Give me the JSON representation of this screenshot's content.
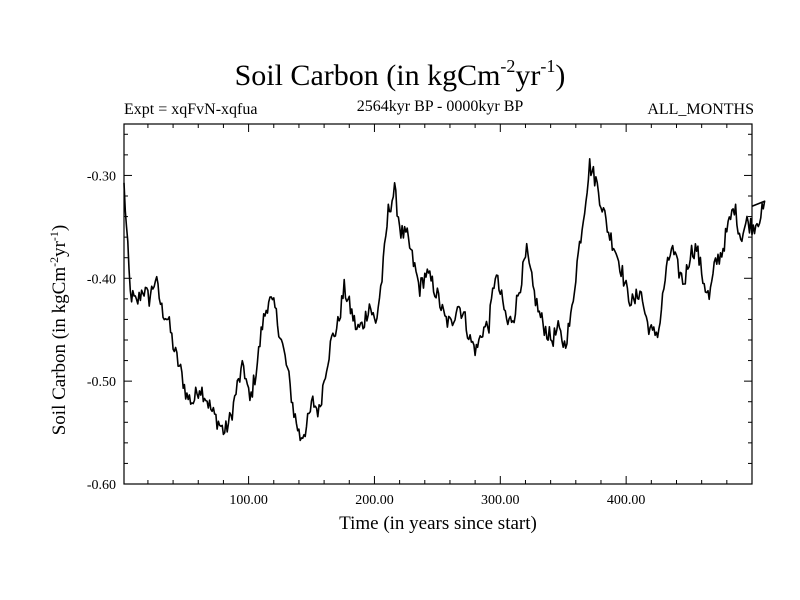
{
  "chart_data": {
    "type": "line",
    "title_main": "Soil Carbon (in kgCm",
    "title_sup1": "-2",
    "title_mid": "yr",
    "title_sup2": "-1",
    "title_end": ")",
    "expt": "Expt = xqFvN-xqfua",
    "period": "2564kyr BP - 0000kyr BP",
    "months": "ALL_MONTHS",
    "xlabel": "Time (in years since start)",
    "ylabel_main": "Soil Carbon (in kgCm",
    "ylabel_sup1": "-2",
    "ylabel_mid": "yr",
    "ylabel_sup2": "-1",
    "ylabel_end": ")",
    "xlim": [
      1,
      500
    ],
    "ylim": [
      -0.6,
      -0.25
    ],
    "x_ticks": [
      100,
      200,
      300,
      400
    ],
    "x_tick_labels": [
      "100.00",
      "200.00",
      "300.00",
      "400.00"
    ],
    "y_ticks": [
      -0.6,
      -0.5,
      -0.4,
      -0.3
    ],
    "y_tick_labels": [
      "-0.60",
      "-0.50",
      "-0.40",
      "-0.30"
    ],
    "series": [
      {
        "name": "Soil Carbon",
        "color": "#000000",
        "x_start": 1,
        "x_step": 5,
        "values": [
          -0.31,
          -0.415,
          -0.425,
          -0.41,
          -0.42,
          -0.4,
          -0.43,
          -0.44,
          -0.47,
          -0.49,
          -0.515,
          -0.52,
          -0.505,
          -0.515,
          -0.53,
          -0.54,
          -0.55,
          -0.535,
          -0.505,
          -0.485,
          -0.52,
          -0.49,
          -0.445,
          -0.42,
          -0.43,
          -0.46,
          -0.49,
          -0.53,
          -0.555,
          -0.545,
          -0.52,
          -0.53,
          -0.49,
          -0.46,
          -0.445,
          -0.41,
          -0.43,
          -0.45,
          -0.445,
          -0.425,
          -0.445,
          -0.4,
          -0.335,
          -0.315,
          -0.355,
          -0.36,
          -0.385,
          -0.41,
          -0.395,
          -0.405,
          -0.42,
          -0.44,
          -0.445,
          -0.425,
          -0.435,
          -0.46,
          -0.47,
          -0.45,
          -0.445,
          -0.395,
          -0.42,
          -0.445,
          -0.435,
          -0.405,
          -0.375,
          -0.41,
          -0.435,
          -0.45,
          -0.46,
          -0.45,
          -0.465,
          -0.44,
          -0.385,
          -0.34,
          -0.29,
          -0.305,
          -0.33,
          -0.355,
          -0.37,
          -0.39,
          -0.415,
          -0.425,
          -0.41,
          -0.44,
          -0.455,
          -0.45,
          -0.4,
          -0.37,
          -0.39,
          -0.405,
          -0.375,
          -0.37,
          -0.4,
          -0.42,
          -0.385,
          -0.375,
          -0.35,
          -0.33,
          -0.36,
          -0.345,
          -0.35,
          -0.34,
          -0.33
        ]
      }
    ]
  }
}
